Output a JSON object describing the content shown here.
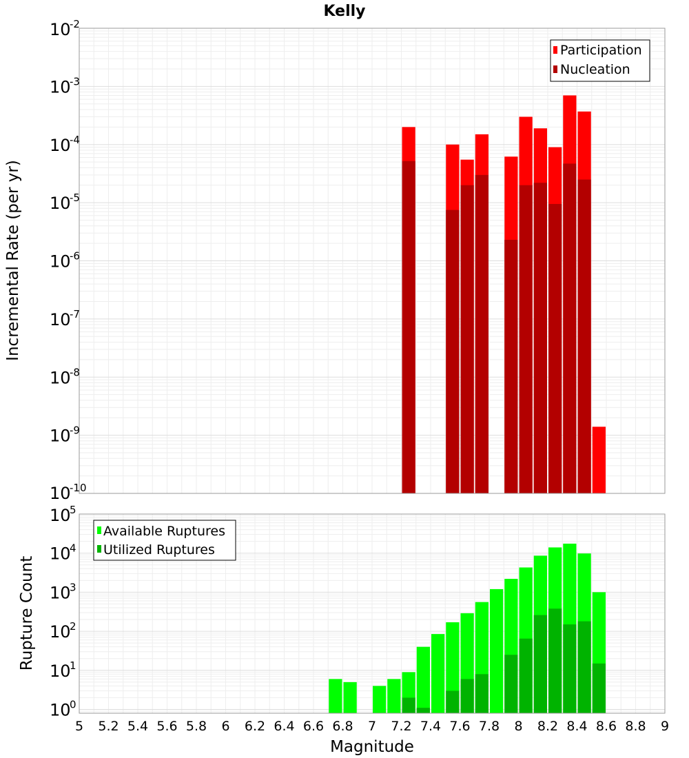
{
  "chart_data": [
    {
      "type": "bar",
      "title": "Kelly",
      "xlabel": "",
      "ylabel": "Incremental Rate (per yr)",
      "yscale": "log",
      "ylim": [
        1e-10,
        0.01
      ],
      "xlim": [
        5,
        9
      ],
      "grid": true,
      "legend_position": "top-right",
      "y_tick_labels": [
        {
          "base": "10",
          "exp": "-10",
          "value": 1e-10
        },
        {
          "base": "10",
          "exp": "-9",
          "value": 1e-09
        },
        {
          "base": "10",
          "exp": "-8",
          "value": 1e-08
        },
        {
          "base": "10",
          "exp": "-7",
          "value": 1e-07
        },
        {
          "base": "10",
          "exp": "-6",
          "value": 1e-06
        },
        {
          "base": "10",
          "exp": "-5",
          "value": 1e-05
        },
        {
          "base": "10",
          "exp": "-4",
          "value": 0.0001
        },
        {
          "base": "10",
          "exp": "-3",
          "value": 0.001
        },
        {
          "base": "10",
          "exp": "-2",
          "value": 0.01
        }
      ],
      "series": [
        {
          "name": "Participation",
          "color": "#ff0000",
          "x": [
            7.25,
            7.55,
            7.65,
            7.75,
            7.95,
            8.05,
            8.15,
            8.25,
            8.35,
            8.45,
            8.55
          ],
          "values": [
            0.0002,
            0.0001,
            5.5e-05,
            0.00015,
            6.2e-05,
            0.0003,
            0.00019,
            9e-05,
            0.0007,
            0.00037,
            1.4e-09
          ]
        },
        {
          "name": "Nucleation",
          "color": "#b30000",
          "x": [
            7.25,
            7.55,
            7.65,
            7.75,
            7.95,
            8.05,
            8.15,
            8.25,
            8.35,
            8.45
          ],
          "values": [
            5.2e-05,
            7.5e-06,
            2e-05,
            3e-05,
            2.3e-06,
            2e-05,
            2.2e-05,
            9.5e-06,
            4.7e-05,
            2.5e-05
          ]
        }
      ]
    },
    {
      "type": "bar",
      "title": "",
      "xlabel": "Magnitude",
      "ylabel": "Rupture Count",
      "yscale": "log",
      "ylim": [
        0.8,
        100000
      ],
      "xlim": [
        5,
        9
      ],
      "grid": true,
      "legend_position": "top-left",
      "x_tick_labels": [
        "5",
        "5.2",
        "5.4",
        "5.6",
        "5.8",
        "6",
        "6.2",
        "6.4",
        "6.6",
        "6.8",
        "7",
        "7.2",
        "7.4",
        "7.6",
        "7.8",
        "8",
        "8.2",
        "8.4",
        "8.6",
        "8.8",
        "9"
      ],
      "y_tick_labels": [
        {
          "base": "10",
          "exp": "0",
          "value": 1
        },
        {
          "base": "10",
          "exp": "1",
          "value": 10
        },
        {
          "base": "10",
          "exp": "2",
          "value": 100
        },
        {
          "base": "10",
          "exp": "3",
          "value": 1000
        },
        {
          "base": "10",
          "exp": "4",
          "value": 10000
        },
        {
          "base": "10",
          "exp": "5",
          "value": 100000
        }
      ],
      "series": [
        {
          "name": "Available Ruptures",
          "color": "#00ff00",
          "x": [
            6.75,
            6.85,
            7.05,
            7.15,
            7.25,
            7.35,
            7.45,
            7.55,
            7.65,
            7.75,
            7.85,
            7.95,
            8.05,
            8.15,
            8.25,
            8.35,
            8.45,
            8.55
          ],
          "values": [
            6,
            5,
            4,
            6,
            9,
            40,
            85,
            170,
            290,
            560,
            1200,
            2200,
            4300,
            8600,
            14000,
            17500,
            9800,
            1000
          ]
        },
        {
          "name": "Utilized Ruptures",
          "color": "#00b300",
          "x": [
            7.25,
            7.35,
            7.55,
            7.65,
            7.75,
            7.95,
            8.05,
            8.15,
            8.25,
            8.35,
            8.45,
            8.55
          ],
          "values": [
            2,
            1.1,
            3,
            6,
            8,
            25,
            65,
            260,
            380,
            150,
            180,
            15
          ]
        }
      ]
    }
  ]
}
